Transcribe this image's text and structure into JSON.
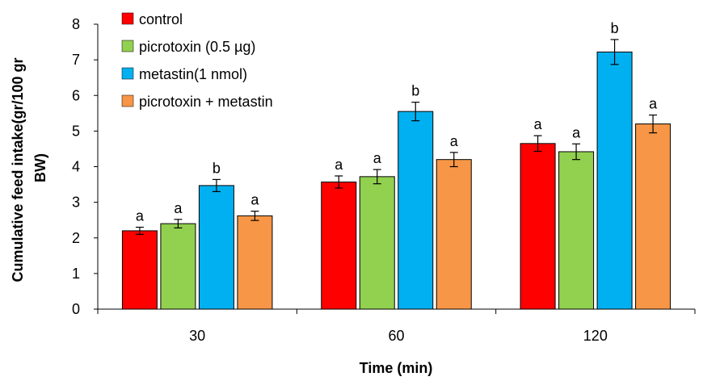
{
  "chart_data": {
    "type": "bar",
    "xlabel": "Time (min)",
    "ylabel_lines": [
      "Cumulative feed intake(gr/100 gr",
      "BW)"
    ],
    "categories": [
      "30",
      "60",
      "120"
    ],
    "ylim": [
      0,
      8
    ],
    "yticks": [
      "0",
      "1",
      "2",
      "3",
      "4",
      "5",
      "6",
      "7",
      "8"
    ],
    "grid": false,
    "legend_position": "top-left",
    "series": [
      {
        "name": "control",
        "color": "#ff0000",
        "values": [
          2.2,
          3.57,
          4.65
        ],
        "errors": [
          0.1,
          0.17,
          0.22
        ],
        "labels": [
          "a",
          "a",
          "a"
        ]
      },
      {
        "name": "picrotoxin (0.5 µg)",
        "color": "#92d050",
        "values": [
          2.4,
          3.72,
          4.42
        ],
        "errors": [
          0.12,
          0.2,
          0.22
        ],
        "labels": [
          "a",
          "a",
          "a"
        ]
      },
      {
        "name": "metastin(1 nmol)",
        "color": "#00b0f0",
        "values": [
          3.47,
          5.55,
          7.22
        ],
        "errors": [
          0.17,
          0.26,
          0.35
        ],
        "labels": [
          "b",
          "b",
          "b"
        ]
      },
      {
        "name": "picrotoxin + metastin",
        "color": "#f79646",
        "values": [
          2.62,
          4.2,
          5.2
        ],
        "errors": [
          0.13,
          0.2,
          0.25
        ],
        "labels": [
          "a",
          "a",
          "a"
        ]
      }
    ]
  }
}
